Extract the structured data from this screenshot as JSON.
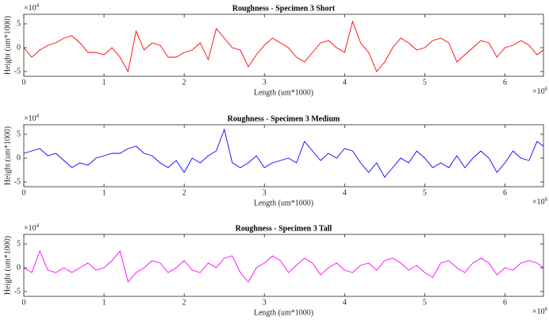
{
  "chart_data": [
    {
      "type": "line",
      "title": "Roughness - Specimen 3 Short",
      "x_label": "Length (um*1000)",
      "y_label": "Height (um*1000)",
      "x_multiplier": "×10",
      "x_exponent": "6",
      "y_multiplier": "×10",
      "y_exponent": "4",
      "xlim": [
        0,
        6.48
      ],
      "ylim": [
        -6,
        7
      ],
      "xticks": [
        0,
        1,
        2,
        3,
        4,
        5,
        6
      ],
      "yticks": [
        -5,
        0,
        5
      ],
      "grid": false,
      "x": [
        0,
        0.1,
        0.2,
        0.3,
        0.4,
        0.5,
        0.6,
        0.7,
        0.8,
        0.9,
        1.0,
        1.1,
        1.2,
        1.3,
        1.4,
        1.5,
        1.6,
        1.7,
        1.8,
        1.9,
        2.0,
        2.1,
        2.2,
        2.3,
        2.4,
        2.5,
        2.6,
        2.7,
        2.8,
        2.9,
        3.0,
        3.1,
        3.2,
        3.3,
        3.4,
        3.5,
        3.6,
        3.7,
        3.8,
        3.9,
        4.0,
        4.1,
        4.2,
        4.3,
        4.4,
        4.5,
        4.6,
        4.7,
        4.8,
        4.9,
        5.0,
        5.1,
        5.2,
        5.3,
        5.4,
        5.5,
        5.6,
        5.7,
        5.8,
        5.9,
        6.0,
        6.1,
        6.2,
        6.3,
        6.4,
        6.48
      ],
      "series": [
        {
          "name": "Specimen 3 Short",
          "color": "#ff0000",
          "values": [
            0,
            -2,
            -0.5,
            0.5,
            1,
            2,
            2.5,
            1,
            -1,
            -1,
            -1.5,
            0,
            -2,
            -5,
            3.5,
            -0.5,
            1,
            0.5,
            -2,
            -2,
            -1,
            -0.5,
            1,
            -2.5,
            4,
            2,
            0,
            -0.5,
            -4,
            -1.5,
            0.5,
            2,
            1,
            0,
            -2,
            -3,
            -1,
            1,
            1.5,
            0,
            -1,
            5.5,
            1,
            -1,
            -5,
            -3,
            0,
            2,
            1,
            -0.5,
            0,
            1.5,
            2,
            1,
            -3,
            -1.5,
            0,
            1.5,
            1,
            -2,
            0,
            0.5,
            1.5,
            0.5,
            -1.5,
            -0.5
          ]
        }
      ]
    },
    {
      "type": "line",
      "title": "Roughness - Specimen 3 Medium",
      "x_label": "Length (um*1000)",
      "y_label": "Height (um*1000)",
      "x_multiplier": "×10",
      "x_exponent": "6",
      "y_multiplier": "×10",
      "y_exponent": "4",
      "xlim": [
        0,
        6.48
      ],
      "ylim": [
        -6,
        7
      ],
      "xticks": [
        0,
        1,
        2,
        3,
        4,
        5,
        6
      ],
      "yticks": [
        -5,
        0,
        5
      ],
      "grid": false,
      "x": [
        0,
        0.1,
        0.2,
        0.3,
        0.4,
        0.5,
        0.6,
        0.7,
        0.8,
        0.9,
        1.0,
        1.1,
        1.2,
        1.3,
        1.4,
        1.5,
        1.6,
        1.7,
        1.8,
        1.9,
        2.0,
        2.1,
        2.2,
        2.3,
        2.4,
        2.5,
        2.6,
        2.7,
        2.8,
        2.9,
        3.0,
        3.1,
        3.2,
        3.3,
        3.4,
        3.5,
        3.6,
        3.7,
        3.8,
        3.9,
        4.0,
        4.1,
        4.2,
        4.3,
        4.4,
        4.5,
        4.6,
        4.7,
        4.8,
        4.9,
        5.0,
        5.1,
        5.2,
        5.3,
        5.4,
        5.5,
        5.6,
        5.7,
        5.8,
        5.9,
        6.0,
        6.1,
        6.2,
        6.3,
        6.4,
        6.48
      ],
      "series": [
        {
          "name": "Specimen 3 Medium",
          "color": "#0000ff",
          "values": [
            1,
            1.5,
            2,
            0.5,
            1,
            -0.5,
            -2,
            -1,
            -1.5,
            0,
            0.5,
            1,
            1,
            2,
            2.5,
            1,
            0.5,
            -1,
            -2,
            -0.5,
            -3,
            0,
            -1,
            0.5,
            1.5,
            6,
            -1,
            -2,
            -1,
            0.5,
            -2,
            -1,
            -0.5,
            0,
            -1,
            3.5,
            1.5,
            -0.5,
            1,
            0,
            2,
            1.5,
            -1,
            -3,
            -1,
            -4,
            -2,
            0,
            -1,
            1.5,
            0,
            -2,
            -1,
            -2,
            0.5,
            -2,
            0,
            1.5,
            0,
            -3,
            -1,
            1.5,
            0,
            -0.5,
            3.5,
            2.5
          ]
        }
      ]
    },
    {
      "type": "line",
      "title": "Roughness - Specimen 3 Tall",
      "x_label": "Length (um*1000)",
      "y_label": "Height (um*1000)",
      "x_multiplier": "×10",
      "x_exponent": "6",
      "y_multiplier": "×10",
      "y_exponent": "4",
      "xlim": [
        0,
        6.48
      ],
      "ylim": [
        -6,
        7
      ],
      "xticks": [
        0,
        1,
        2,
        3,
        4,
        5,
        6
      ],
      "yticks": [
        -5,
        0,
        5
      ],
      "grid": false,
      "x": [
        0,
        0.1,
        0.2,
        0.3,
        0.4,
        0.5,
        0.6,
        0.7,
        0.8,
        0.9,
        1.0,
        1.1,
        1.2,
        1.3,
        1.4,
        1.5,
        1.6,
        1.7,
        1.8,
        1.9,
        2.0,
        2.1,
        2.2,
        2.3,
        2.4,
        2.5,
        2.6,
        2.7,
        2.8,
        2.9,
        3.0,
        3.1,
        3.2,
        3.3,
        3.4,
        3.5,
        3.6,
        3.7,
        3.8,
        3.9,
        4.0,
        4.1,
        4.2,
        4.3,
        4.4,
        4.5,
        4.6,
        4.7,
        4.8,
        4.9,
        5.0,
        5.1,
        5.2,
        5.3,
        5.4,
        5.5,
        5.6,
        5.7,
        5.8,
        5.9,
        6.0,
        6.1,
        6.2,
        6.3,
        6.4,
        6.48
      ],
      "series": [
        {
          "name": "Specimen 3 Tall",
          "color": "#ff00ff",
          "values": [
            0,
            -1,
            3.5,
            -0.5,
            -1,
            0,
            -1,
            0,
            1,
            -0.5,
            0,
            1.5,
            3.5,
            -3,
            -1,
            0,
            1.5,
            1,
            -1,
            0,
            1.5,
            -0.5,
            -1,
            1,
            0,
            2,
            2.5,
            -1,
            -3,
            0,
            1,
            2.5,
            1.5,
            -1,
            0.5,
            2,
            1,
            -1.5,
            0,
            1,
            -0.5,
            -1,
            0.5,
            1,
            -0.5,
            1.5,
            2,
            1,
            -0.5,
            0.5,
            -1,
            -2,
            1,
            1.5,
            0,
            -1,
            1,
            2,
            1,
            -1.5,
            0,
            -0.5,
            1,
            1.5,
            1,
            0
          ]
        }
      ]
    }
  ]
}
